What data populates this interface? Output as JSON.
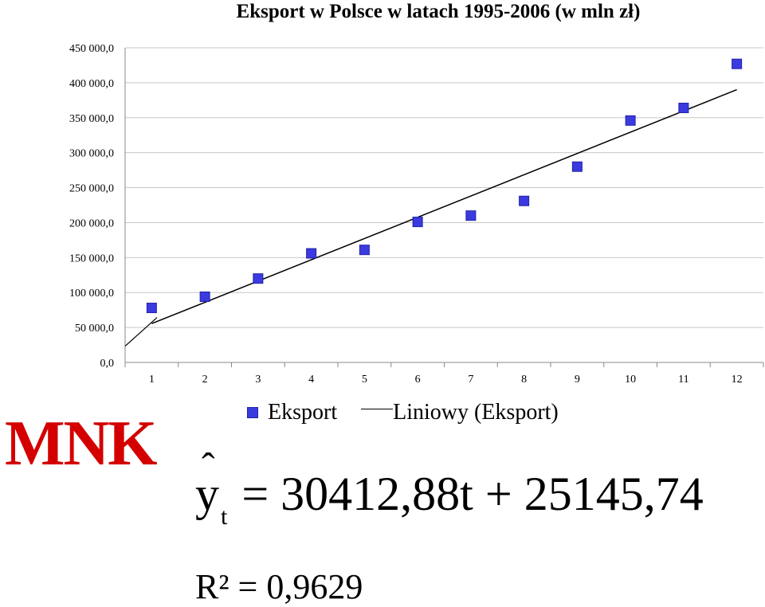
{
  "chart_data": {
    "type": "scatter",
    "title": "Eksport w Polsce w latach 1995-2006 (w mln zł)",
    "xlabel": "",
    "ylabel": "",
    "x": [
      1,
      2,
      3,
      4,
      5,
      6,
      7,
      8,
      9,
      10,
      11,
      12
    ],
    "x_tick_labels": [
      "1",
      "2",
      "3",
      "4",
      "5",
      "6",
      "7",
      "8",
      "9",
      "10",
      "11",
      "12"
    ],
    "y_tick_labels": [
      "0,0",
      "50 000,0",
      "100 000,0",
      "150 000,0",
      "200 000,0",
      "250 000,0",
      "300 000,0",
      "350 000,0",
      "400 000,0",
      "450 000,0"
    ],
    "ylim": [
      0,
      450000
    ],
    "y_tick_step": 50000,
    "grid": "horizontal",
    "legend_position": "bottom",
    "series": [
      {
        "name": "Eksport",
        "kind": "markers",
        "color": "#3a3adf",
        "values": [
          78000,
          94000,
          120000,
          156000,
          161000,
          201000,
          210000,
          231000,
          280000,
          346000,
          364000,
          427000
        ]
      },
      {
        "name": "Liniowy (Eksport)",
        "kind": "trendline",
        "color": "#000000",
        "slope": 30412.88,
        "intercept": 25145.74
      }
    ]
  },
  "annotations": {
    "mnk_label": "MNK",
    "equation_lhs": "y",
    "equation_hat": "ˆ",
    "equation_sub": "t",
    "equation_rhs": "= 30412,88t + 25145,74",
    "r_squared": "R² = 0,9629"
  },
  "colors": {
    "marker": "#3a3adf",
    "trendline": "#000000",
    "mnk": "#d40000",
    "gridline": "#c8c8c8"
  }
}
